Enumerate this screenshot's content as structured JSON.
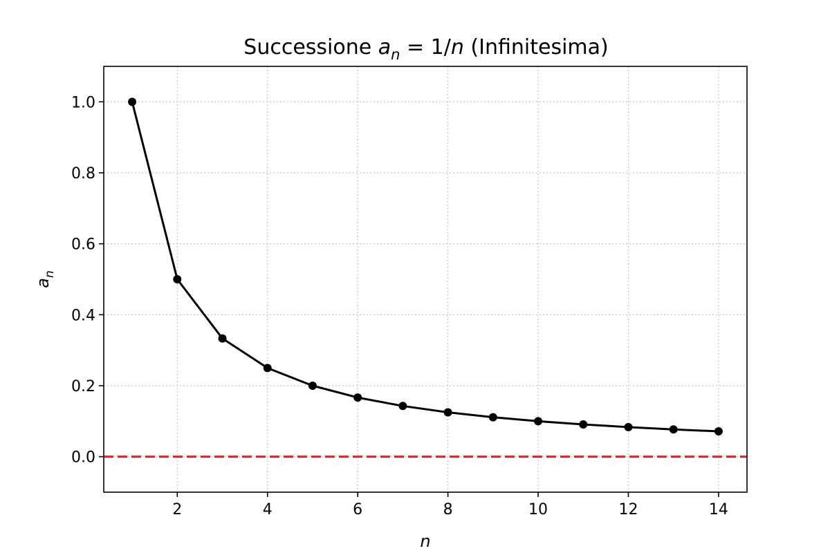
{
  "chart_data": {
    "type": "line",
    "title": {
      "prefix": "Successione ",
      "lhs_base": "a",
      "lhs_sub": "n",
      "equals": " = 1/",
      "rhs_var": "n",
      "suffix": " (Infinitesima)"
    },
    "xlabel": "n",
    "ylabel": {
      "base": "a",
      "sub": "n"
    },
    "xlim": [
      0.37,
      14.63
    ],
    "ylim": [
      -0.1,
      1.1
    ],
    "xticks": [
      2,
      4,
      6,
      8,
      10,
      12,
      14
    ],
    "xtick_labels": [
      "2",
      "4",
      "6",
      "8",
      "10",
      "12",
      "14"
    ],
    "yticks": [
      0.0,
      0.2,
      0.4,
      0.6,
      0.8,
      1.0
    ],
    "ytick_labels": [
      "0.0",
      "0.2",
      "0.4",
      "0.6",
      "0.8",
      "1.0"
    ],
    "grid": true,
    "series": [
      {
        "x": [
          1,
          2,
          3,
          4,
          5,
          6,
          7,
          8,
          9,
          10,
          11,
          12,
          13,
          14
        ],
        "values": [
          1.0,
          0.5,
          0.3333,
          0.25,
          0.2,
          0.1667,
          0.1429,
          0.125,
          0.1111,
          0.1,
          0.0909,
          0.0833,
          0.0769,
          0.0714
        ],
        "color": "#000000",
        "marker": "circle"
      }
    ],
    "reference_line": {
      "y": 0,
      "color": "#d62728",
      "style": "dashed"
    }
  }
}
